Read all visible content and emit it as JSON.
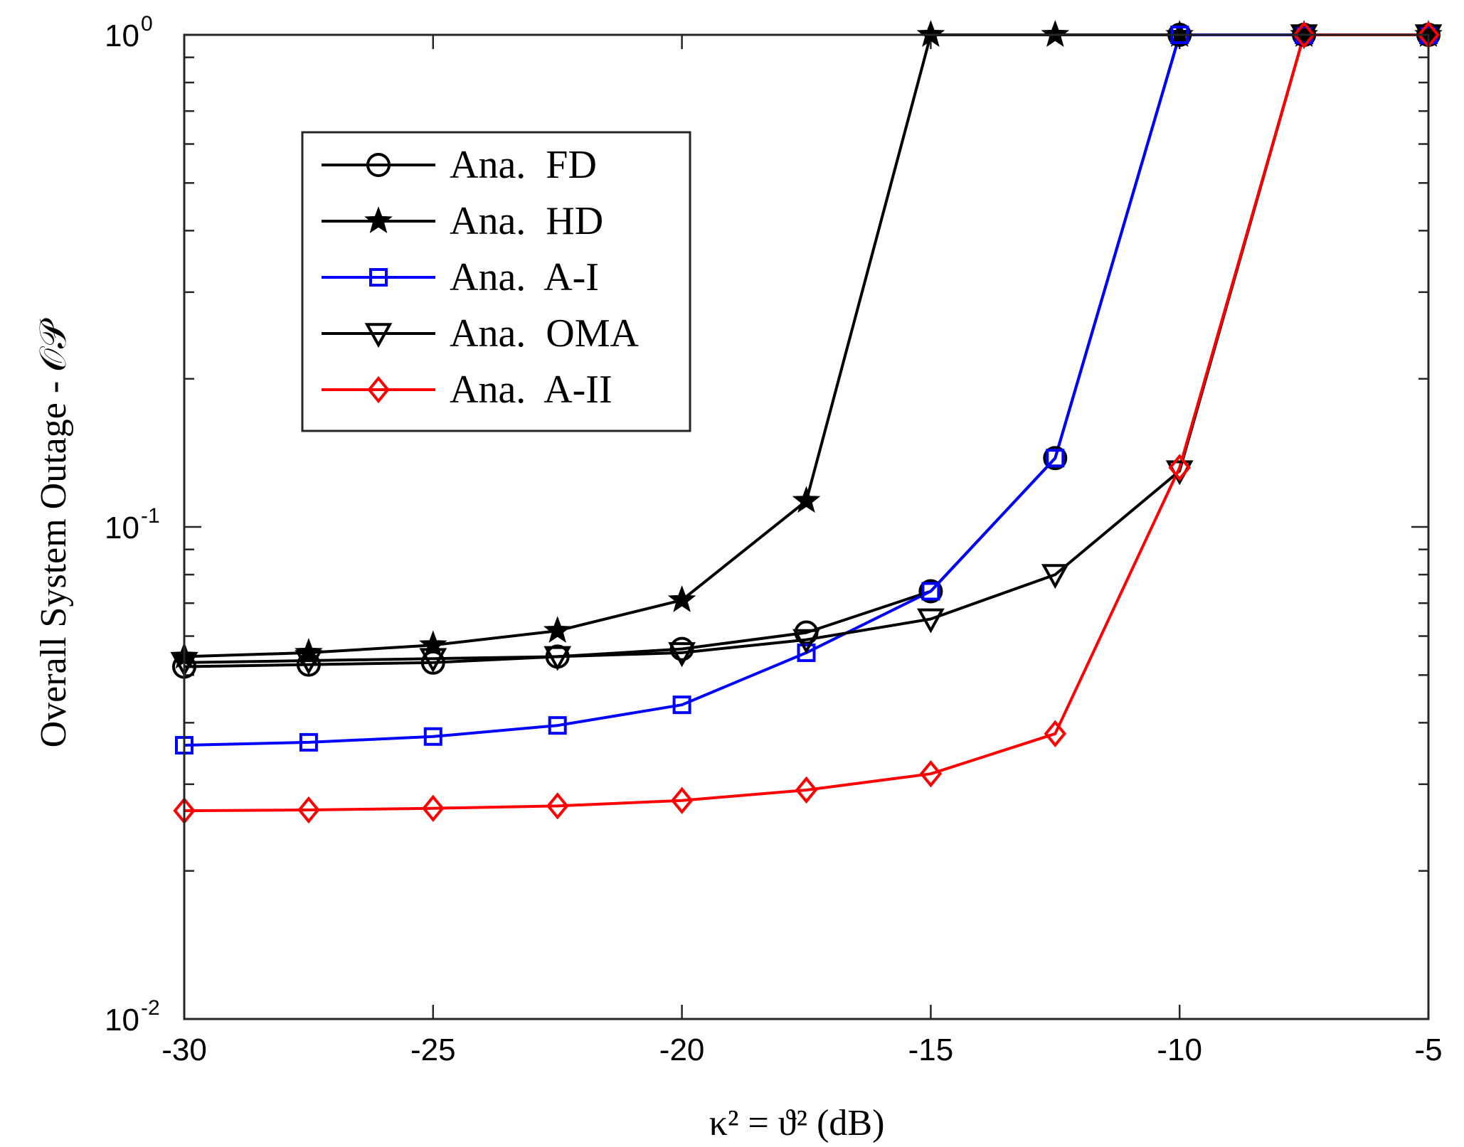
{
  "chart_data": {
    "type": "line",
    "title": "",
    "xlabel": "κ² = ϑ² (dB)",
    "ylabel": "Overall System Outage - 𝒪𝒫",
    "yscale": "log",
    "xlim": [
      -30,
      -5
    ],
    "ylim": [
      0.01,
      1
    ],
    "grid": false,
    "x_ticks": [
      -30,
      -25,
      -20,
      -15,
      -10,
      -5
    ],
    "x_tick_labels": [
      "-30",
      "-25",
      "-20",
      "-15",
      "-10",
      "-5"
    ],
    "y_ticks": [
      {
        "value": 0.01,
        "base": "10",
        "exp": "-2"
      },
      {
        "value": 0.1,
        "base": "10",
        "exp": "-1"
      },
      {
        "value": 1,
        "base": "10",
        "exp": "0"
      }
    ],
    "x": [
      -30,
      -27.5,
      -25,
      -22.5,
      -20,
      -17.5,
      -15,
      -12.5,
      -10,
      -7.5,
      -5
    ],
    "legend_position": "top-left",
    "series": [
      {
        "name": "Ana.  FD",
        "color": "#000000",
        "marker": "circle",
        "values": [
          0.052,
          0.0525,
          0.053,
          0.0545,
          0.0565,
          0.061,
          0.074,
          0.138,
          1.0,
          1.0,
          1.0
        ]
      },
      {
        "name": "Ana.  HD",
        "color": "#000000",
        "marker": "star",
        "values": [
          0.0545,
          0.0555,
          0.0575,
          0.0615,
          0.071,
          0.113,
          1.0,
          1.0,
          1.0,
          1.0,
          1.0
        ]
      },
      {
        "name": "Ana.  A-I",
        "color": "#0000ff",
        "marker": "square",
        "values": [
          0.036,
          0.0365,
          0.0375,
          0.0395,
          0.0435,
          0.0555,
          0.074,
          0.138,
          1.0,
          1.0,
          1.0
        ]
      },
      {
        "name": "Ana.  OMA",
        "color": "#000000",
        "marker": "triangle-down",
        "values": [
          0.053,
          0.0535,
          0.054,
          0.0545,
          0.0555,
          0.059,
          0.065,
          0.08,
          0.13,
          1.0,
          1.0
        ]
      },
      {
        "name": "Ana.  A-II",
        "color": "#ff0000",
        "marker": "diamond",
        "values": [
          0.0265,
          0.0266,
          0.0268,
          0.0271,
          0.0278,
          0.0292,
          0.0315,
          0.038,
          0.132,
          1.0,
          1.0
        ]
      }
    ]
  }
}
